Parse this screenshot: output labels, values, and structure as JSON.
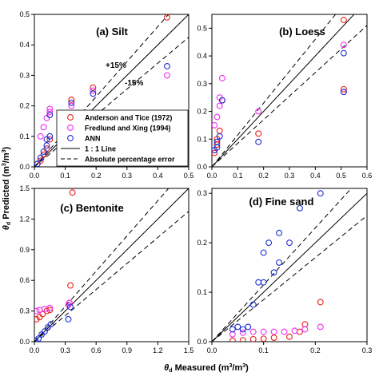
{
  "figure": {
    "ylabel_theta": "θ",
    "ylabel_sub": "d",
    "ylabel_rest": " Predicted (m",
    "ylabel_unit": "3",
    "ylabel_mid": "/m",
    "ylabel_end": ")",
    "xlabel_theta": "θ",
    "xlabel_sub": "d",
    "xlabel_rest": " Measured (m",
    "xlabel_end": ")"
  },
  "legend": {
    "items": [
      {
        "label": "Anderson and Tice (1972)",
        "marker": "circle",
        "color": "#e8211b"
      },
      {
        "label": "Fredlund and Xing (1994)",
        "marker": "circle",
        "color": "#ef2cf0"
      },
      {
        "label": "ANN",
        "marker": "circle",
        "color": "#1c2fd6"
      },
      {
        "label": "1 : 1 Line",
        "marker": "solid-line",
        "color": "#000000"
      },
      {
        "label": "Absolute percentage error",
        "marker": "dashed-line",
        "color": "#000000"
      }
    ]
  },
  "chart_data": [
    {
      "type": "scatter",
      "title": "(a) Silt",
      "xlim": [
        0,
        0.5
      ],
      "ylim": [
        0,
        0.5
      ],
      "xticks": [
        "0.0",
        "0.1",
        "0.2",
        "0.3",
        "0.4",
        "0.5"
      ],
      "yticks": [
        "0.0",
        "0.1",
        "0.2",
        "0.3",
        "0.4",
        "0.5"
      ],
      "annotations": [
        "+15%",
        "-15%"
      ],
      "series": [
        {
          "name": "Anderson and Tice (1972)",
          "color": "#e8211b",
          "points": [
            [
              0.01,
              0.01
            ],
            [
              0.02,
              0.02
            ],
            [
              0.03,
              0.04
            ],
            [
              0.04,
              0.06
            ],
            [
              0.05,
              0.09
            ],
            [
              0.12,
              0.22
            ],
            [
              0.19,
              0.26
            ],
            [
              0.43,
              0.49
            ]
          ]
        },
        {
          "name": "Fredlund and Xing (1994)",
          "color": "#ef2cf0",
          "points": [
            [
              0.02,
              0.1
            ],
            [
              0.03,
              0.13
            ],
            [
              0.04,
              0.16
            ],
            [
              0.05,
              0.18
            ],
            [
              0.05,
              0.19
            ],
            [
              0.12,
              0.2
            ],
            [
              0.19,
              0.25
            ],
            [
              0.43,
              0.3
            ]
          ]
        },
        {
          "name": "ANN",
          "color": "#1c2fd6",
          "points": [
            [
              0.01,
              0.01
            ],
            [
              0.02,
              0.03
            ],
            [
              0.03,
              0.05
            ],
            [
              0.04,
              0.07
            ],
            [
              0.04,
              0.09
            ],
            [
              0.05,
              0.1
            ],
            [
              0.05,
              0.17
            ],
            [
              0.12,
              0.21
            ],
            [
              0.19,
              0.24
            ],
            [
              0.43,
              0.33
            ]
          ]
        }
      ]
    },
    {
      "type": "scatter",
      "title": "(b) Loess",
      "xlim": [
        0,
        0.6
      ],
      "ylim": [
        0,
        0.55
      ],
      "xticks": [
        "0.0",
        "0.1",
        "0.2",
        "0.3",
        "0.4",
        "0.5",
        "0.6"
      ],
      "yticks": [
        "0.0",
        "0.1",
        "0.2",
        "0.3",
        "0.4",
        "0.5"
      ],
      "series": [
        {
          "name": "Anderson and Tice (1972)",
          "color": "#e8211b",
          "points": [
            [
              0.01,
              0.05
            ],
            [
              0.02,
              0.08
            ],
            [
              0.02,
              0.1
            ],
            [
              0.03,
              0.13
            ],
            [
              0.04,
              0.24
            ],
            [
              0.18,
              0.12
            ],
            [
              0.51,
              0.53
            ],
            [
              0.51,
              0.28
            ]
          ]
        },
        {
          "name": "Fredlund and Xing (1994)",
          "color": "#ef2cf0",
          "points": [
            [
              0.01,
              0.15
            ],
            [
              0.02,
              0.18
            ],
            [
              0.03,
              0.22
            ],
            [
              0.03,
              0.25
            ],
            [
              0.04,
              0.32
            ],
            [
              0.18,
              0.2
            ],
            [
              0.51,
              0.44
            ],
            [
              0.51,
              0.27
            ]
          ]
        },
        {
          "name": "ANN",
          "color": "#1c2fd6",
          "points": [
            [
              0.01,
              0.06
            ],
            [
              0.02,
              0.07
            ],
            [
              0.02,
              0.09
            ],
            [
              0.03,
              0.11
            ],
            [
              0.04,
              0.24
            ],
            [
              0.18,
              0.09
            ],
            [
              0.51,
              0.41
            ],
            [
              0.51,
              0.27
            ]
          ]
        }
      ]
    },
    {
      "type": "scatter",
      "title": "(c) Bentonite",
      "xlim": [
        0,
        1.5
      ],
      "ylim": [
        0,
        1.5
      ],
      "xticks": [
        "0.0",
        "0.3",
        "0.6",
        "0.9",
        "1.2",
        "1.5"
      ],
      "yticks": [
        "0.0",
        "0.3",
        "0.6",
        "0.9",
        "1.2",
        "1.5"
      ],
      "series": [
        {
          "name": "Anderson and Tice (1972)",
          "color": "#e8211b",
          "points": [
            [
              0.02,
              0.22
            ],
            [
              0.05,
              0.24
            ],
            [
              0.08,
              0.27
            ],
            [
              0.12,
              0.3
            ],
            [
              0.15,
              0.31
            ],
            [
              0.34,
              0.38
            ],
            [
              0.35,
              0.55
            ],
            [
              0.37,
              1.46
            ]
          ]
        },
        {
          "name": "Fredlund and Xing (1994)",
          "color": "#ef2cf0",
          "points": [
            [
              0.02,
              0.3
            ],
            [
              0.05,
              0.31
            ],
            [
              0.1,
              0.32
            ],
            [
              0.15,
              0.33
            ],
            [
              0.33,
              0.36
            ],
            [
              0.34,
              0.38
            ]
          ]
        },
        {
          "name": "ANN",
          "color": "#1c2fd6",
          "points": [
            [
              0.01,
              0.01
            ],
            [
              0.04,
              0.03
            ],
            [
              0.07,
              0.07
            ],
            [
              0.1,
              0.1
            ],
            [
              0.13,
              0.14
            ],
            [
              0.16,
              0.17
            ],
            [
              0.33,
              0.22
            ],
            [
              0.35,
              0.34
            ]
          ]
        }
      ]
    },
    {
      "type": "scatter",
      "title": "(d) Fine sand",
      "xlim": [
        0,
        0.3
      ],
      "ylim": [
        0,
        0.31
      ],
      "xticks": [
        "0.0",
        "0.1",
        "0.2",
        "0.3"
      ],
      "yticks": [
        "0.0",
        "0.1",
        "0.2",
        "0.3"
      ],
      "series": [
        {
          "name": "Anderson and Tice (1972)",
          "color": "#e8211b",
          "points": [
            [
              0.04,
              0.002
            ],
            [
              0.06,
              0.003
            ],
            [
              0.08,
              0.005
            ],
            [
              0.1,
              0.006
            ],
            [
              0.12,
              0.008
            ],
            [
              0.15,
              0.01
            ],
            [
              0.17,
              0.02
            ],
            [
              0.18,
              0.035
            ],
            [
              0.21,
              0.08
            ]
          ]
        },
        {
          "name": "Fredlund and Xing (1994)",
          "color": "#ef2cf0",
          "points": [
            [
              0.04,
              0.015
            ],
            [
              0.06,
              0.018
            ],
            [
              0.08,
              0.02
            ],
            [
              0.1,
              0.02
            ],
            [
              0.12,
              0.02
            ],
            [
              0.14,
              0.02
            ],
            [
              0.16,
              0.022
            ],
            [
              0.18,
              0.025
            ],
            [
              0.21,
              0.03
            ]
          ]
        },
        {
          "name": "ANN",
          "color": "#1c2fd6",
          "points": [
            [
              0.04,
              0.025
            ],
            [
              0.05,
              0.03
            ],
            [
              0.06,
              0.025
            ],
            [
              0.07,
              0.03
            ],
            [
              0.08,
              0.075
            ],
            [
              0.09,
              0.12
            ],
            [
              0.1,
              0.12
            ],
            [
              0.1,
              0.18
            ],
            [
              0.11,
              0.2
            ],
            [
              0.12,
              0.14
            ],
            [
              0.13,
              0.16
            ],
            [
              0.13,
              0.22
            ],
            [
              0.15,
              0.2
            ],
            [
              0.17,
              0.27
            ],
            [
              0.21,
              0.3
            ]
          ]
        }
      ]
    }
  ]
}
